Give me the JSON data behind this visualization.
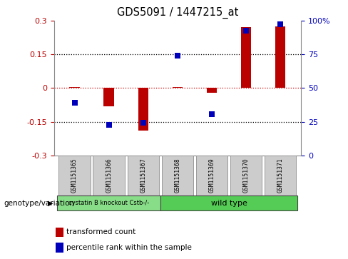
{
  "title": "GDS5091 / 1447215_at",
  "samples": [
    "GSM1151365",
    "GSM1151366",
    "GSM1151367",
    "GSM1151368",
    "GSM1151369",
    "GSM1151370",
    "GSM1151371"
  ],
  "bar_values": [
    0.005,
    -0.08,
    -0.19,
    0.005,
    -0.02,
    0.27,
    0.275
  ],
  "scatter_values": [
    -0.065,
    -0.165,
    -0.155,
    0.145,
    -0.115,
    0.255,
    0.285
  ],
  "ylim": [
    -0.3,
    0.3
  ],
  "yticks": [
    -0.3,
    -0.15,
    0.0,
    0.15,
    0.3
  ],
  "ytick_labels": [
    "-0.3",
    "-0.15",
    "0",
    "0.15",
    "0.3"
  ],
  "right_ytick_labels": [
    "0",
    "25",
    "50",
    "75",
    "100%"
  ],
  "bar_color": "#bb0000",
  "scatter_color": "#0000bb",
  "zero_line_color": "#cc0000",
  "dotted_line_color": "#000000",
  "group1_label": "cystatin B knockout Cstb-/-",
  "group2_label": "wild type",
  "group1_n": 3,
  "group2_n": 4,
  "group1_color": "#88dd88",
  "group2_color": "#55cc55",
  "genotype_label": "genotype/variation",
  "legend1": "transformed count",
  "legend2": "percentile rank within the sample",
  "bg_color": "#ffffff",
  "bar_width": 0.3
}
